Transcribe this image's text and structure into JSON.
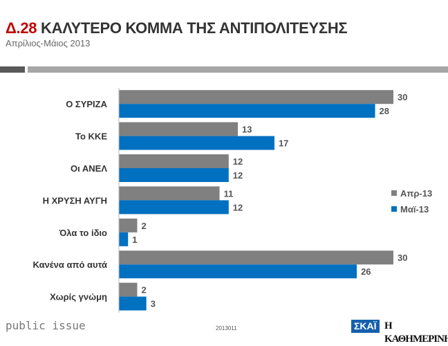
{
  "header": {
    "number": "Δ.28",
    "title": "ΚΑΛΥΤΕΡΟ ΚΟΜΜΑ ΤΗΣ ΑΝΤΙΠΟΛΙΤΕΥΣΗΣ",
    "subtitle": "Απρίλιος-Μάιος 2013"
  },
  "footer": {
    "brand": "public issue",
    "code": "2013011",
    "logo_skai": "ΣΚΑΪ",
    "logo_kathimerini": "Η ΚΑΘΗΜΕΡΙΝΗ"
  },
  "chart_data": {
    "type": "bar",
    "orientation": "horizontal",
    "title": "ΚΑΛΥΤΕΡΟ ΚΟΜΜΑ ΤΗΣ ΑΝΤΙΠΟΛΙΤΕΥΣΗΣ",
    "categories": [
      "Ο ΣΥΡΙΖΑ",
      "Το ΚΚΕ",
      "Οι ΑΝΕΛ",
      "Η ΧΡΥΣΗ ΑΥΓΗ",
      "Όλα το ίδιο",
      "Κανένα από αυτά",
      "Χωρίς γνώμη"
    ],
    "series": [
      {
        "name": "Απρ-13",
        "color": "#808080",
        "values": [
          30,
          13,
          12,
          11,
          2,
          30,
          2
        ]
      },
      {
        "name": "Μαϊ-13",
        "color": "#0070c0",
        "values": [
          28,
          17,
          12,
          12,
          1,
          26,
          3
        ]
      }
    ],
    "xlim": [
      0,
      30
    ],
    "grid": false,
    "legend": "right"
  }
}
